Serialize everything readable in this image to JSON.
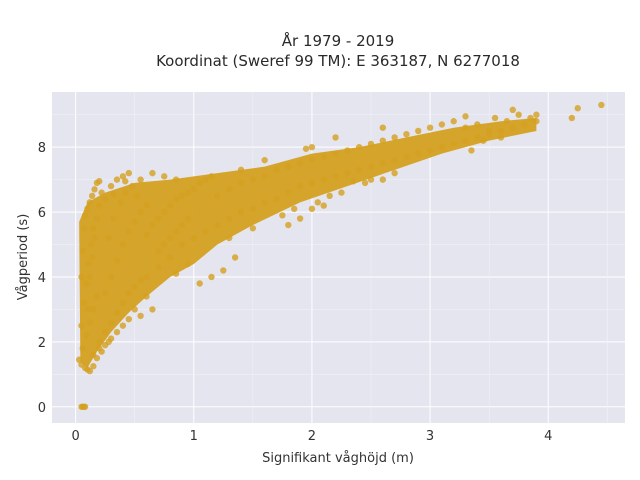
{
  "chart_data": {
    "type": "scatter",
    "title": "År 1979 - 2019",
    "subtitle": "Koordinat (Sweref 99 TM): E 363187, N 6277018",
    "xlabel": "Signifikant våghöjd (m)",
    "ylabel": "Vågperiod (s)",
    "xlim": [
      -0.2,
      4.65
    ],
    "ylim": [
      -0.5,
      9.7
    ],
    "x_ticks": [
      0,
      1,
      2,
      3,
      4
    ],
    "y_ticks": [
      0,
      2,
      4,
      6,
      8
    ],
    "grid": true,
    "marker_color": "#D4A020",
    "plot_background": "#E5E5EF",
    "points": [
      [
        0.05,
        0.0
      ],
      [
        0.06,
        0.0
      ],
      [
        0.07,
        0.0
      ],
      [
        0.08,
        0.0
      ],
      [
        0.03,
        1.45
      ],
      [
        0.05,
        1.3
      ],
      [
        0.08,
        1.2
      ],
      [
        0.1,
        1.15
      ],
      [
        0.12,
        1.1
      ],
      [
        0.15,
        1.25
      ],
      [
        0.06,
        1.8
      ],
      [
        0.09,
        2.2
      ],
      [
        0.12,
        2.6
      ],
      [
        0.15,
        3.0
      ],
      [
        0.18,
        3.4
      ],
      [
        0.2,
        2.0
      ],
      [
        0.05,
        2.5
      ],
      [
        0.07,
        3.2
      ],
      [
        0.09,
        3.8
      ],
      [
        0.11,
        4.4
      ],
      [
        0.13,
        5.0
      ],
      [
        0.15,
        5.5
      ],
      [
        0.05,
        4.0
      ],
      [
        0.06,
        4.8
      ],
      [
        0.07,
        5.5
      ],
      [
        0.08,
        5.9
      ],
      [
        0.1,
        6.1
      ],
      [
        0.12,
        6.3
      ],
      [
        0.14,
        6.5
      ],
      [
        0.16,
        6.7
      ],
      [
        0.18,
        6.9
      ],
      [
        0.2,
        6.95
      ],
      [
        0.22,
        6.6
      ],
      [
        0.25,
        6.4
      ],
      [
        0.25,
        2.3
      ],
      [
        0.3,
        2.6
      ],
      [
        0.35,
        2.9
      ],
      [
        0.4,
        3.2
      ],
      [
        0.45,
        3.5
      ],
      [
        0.5,
        3.7
      ],
      [
        0.55,
        3.9
      ],
      [
        0.6,
        4.0
      ],
      [
        0.7,
        4.3
      ],
      [
        0.8,
        4.6
      ],
      [
        0.9,
        5.0
      ],
      [
        1.0,
        5.2
      ],
      [
        0.25,
        3.5
      ],
      [
        0.3,
        4.0
      ],
      [
        0.35,
        4.5
      ],
      [
        0.4,
        5.0
      ],
      [
        0.45,
        5.4
      ],
      [
        0.5,
        5.7
      ],
      [
        0.55,
        6.0
      ],
      [
        0.6,
        6.2
      ],
      [
        0.3,
        6.8
      ],
      [
        0.35,
        7.0
      ],
      [
        0.4,
        7.1
      ],
      [
        0.45,
        7.2
      ],
      [
        0.28,
        5.2
      ],
      [
        0.32,
        5.8
      ],
      [
        0.38,
        6.3
      ],
      [
        0.42,
        6.6
      ],
      [
        0.48,
        6.8
      ],
      [
        0.52,
        6.5
      ],
      [
        0.6,
        5.3
      ],
      [
        0.65,
        5.6
      ],
      [
        0.7,
        5.8
      ],
      [
        0.75,
        6.0
      ],
      [
        0.8,
        6.2
      ],
      [
        0.85,
        6.4
      ],
      [
        0.9,
        6.5
      ],
      [
        0.95,
        6.6
      ],
      [
        1.0,
        6.7
      ],
      [
        1.05,
        6.9
      ],
      [
        1.1,
        7.0
      ],
      [
        1.15,
        7.1
      ],
      [
        0.7,
        4.8
      ],
      [
        0.75,
        5.0
      ],
      [
        0.8,
        5.2
      ],
      [
        0.85,
        5.4
      ],
      [
        0.9,
        5.6
      ],
      [
        0.95,
        5.8
      ],
      [
        1.1,
        5.4
      ],
      [
        1.2,
        5.6
      ],
      [
        1.3,
        5.8
      ],
      [
        1.4,
        6.0
      ],
      [
        1.5,
        6.1
      ],
      [
        1.6,
        6.3
      ],
      [
        1.2,
        6.5
      ],
      [
        1.3,
        6.7
      ],
      [
        1.4,
        6.9
      ],
      [
        1.5,
        7.0
      ],
      [
        1.6,
        7.1
      ],
      [
        1.7,
        7.3
      ],
      [
        1.25,
        4.2
      ],
      [
        1.35,
        4.6
      ],
      [
        1.05,
        3.8
      ],
      [
        1.15,
        4.0
      ],
      [
        0.65,
        3.0
      ],
      [
        0.55,
        2.8
      ],
      [
        1.7,
        6.4
      ],
      [
        1.8,
        6.6
      ],
      [
        1.9,
        6.8
      ],
      [
        2.0,
        6.9
      ],
      [
        2.1,
        7.0
      ],
      [
        2.2,
        7.1
      ],
      [
        1.8,
        7.4
      ],
      [
        1.9,
        7.5
      ],
      [
        2.0,
        7.6
      ],
      [
        2.1,
        7.7
      ],
      [
        2.2,
        7.8
      ],
      [
        2.3,
        7.9
      ],
      [
        2.3,
        7.2
      ],
      [
        2.4,
        7.3
      ],
      [
        2.5,
        7.4
      ],
      [
        2.6,
        7.5
      ],
      [
        2.7,
        7.6
      ],
      [
        2.8,
        7.7
      ],
      [
        2.4,
        8.0
      ],
      [
        2.5,
        8.1
      ],
      [
        2.6,
        8.2
      ],
      [
        2.7,
        8.3
      ],
      [
        2.8,
        8.4
      ],
      [
        2.9,
        8.5
      ],
      [
        1.75,
        5.9
      ],
      [
        1.85,
        6.1
      ],
      [
        2.05,
        6.3
      ],
      [
        2.25,
        6.6
      ],
      [
        2.45,
        6.9
      ],
      [
        2.6,
        7.0
      ],
      [
        2.9,
        7.8
      ],
      [
        3.0,
        7.9
      ],
      [
        3.1,
        8.0
      ],
      [
        3.2,
        8.1
      ],
      [
        3.3,
        8.2
      ],
      [
        3.4,
        8.3
      ],
      [
        3.0,
        8.6
      ],
      [
        3.1,
        8.7
      ],
      [
        3.2,
        8.8
      ],
      [
        3.3,
        8.6
      ],
      [
        3.4,
        8.7
      ],
      [
        3.5,
        8.5
      ],
      [
        3.5,
        8.4
      ],
      [
        3.6,
        8.5
      ],
      [
        3.7,
        8.6
      ],
      [
        3.8,
        8.7
      ],
      [
        3.9,
        8.8
      ],
      [
        3.55,
        8.9
      ],
      [
        3.65,
        8.8
      ],
      [
        3.75,
        9.0
      ],
      [
        3.85,
        8.9
      ],
      [
        3.9,
        9.0
      ],
      [
        4.2,
        8.9
      ],
      [
        4.25,
        9.2
      ],
      [
        4.45,
        9.3
      ],
      [
        3.7,
        9.15
      ],
      [
        3.45,
        8.2
      ],
      [
        3.35,
        7.9
      ],
      [
        3.6,
        8.3
      ],
      [
        3.3,
        8.95
      ],
      [
        2.0,
        8.0
      ],
      [
        2.2,
        8.3
      ],
      [
        1.6,
        7.6
      ],
      [
        1.4,
        7.3
      ],
      [
        2.35,
        6.95
      ],
      [
        2.15,
        6.5
      ],
      [
        2.5,
        7.0
      ],
      [
        2.7,
        7.2
      ],
      [
        1.3,
        5.2
      ],
      [
        1.5,
        5.5
      ],
      [
        0.95,
        4.4
      ],
      [
        0.85,
        4.1
      ],
      [
        0.2,
        1.8
      ],
      [
        0.25,
        1.9
      ],
      [
        0.3,
        2.1
      ],
      [
        0.35,
        2.3
      ],
      [
        0.4,
        2.5
      ],
      [
        0.45,
        2.7
      ],
      [
        0.15,
        1.6
      ],
      [
        0.18,
        1.5
      ],
      [
        0.22,
        1.7
      ],
      [
        0.28,
        2.0
      ],
      [
        0.5,
        3.0
      ],
      [
        0.6,
        3.4
      ],
      [
        0.1,
        3.0
      ],
      [
        0.12,
        4.0
      ],
      [
        0.14,
        4.6
      ],
      [
        0.16,
        5.2
      ],
      [
        0.18,
        5.8
      ],
      [
        0.2,
        6.2
      ],
      [
        0.32,
        6.55
      ],
      [
        0.42,
        6.95
      ],
      [
        0.55,
        7.0
      ],
      [
        0.65,
        7.2
      ],
      [
        0.75,
        7.1
      ],
      [
        0.85,
        7.0
      ],
      [
        1.8,
        5.6
      ],
      [
        1.9,
        5.8
      ],
      [
        2.0,
        6.1
      ],
      [
        2.1,
        6.2
      ],
      [
        1.95,
        7.95
      ],
      [
        2.6,
        8.6
      ]
    ]
  }
}
